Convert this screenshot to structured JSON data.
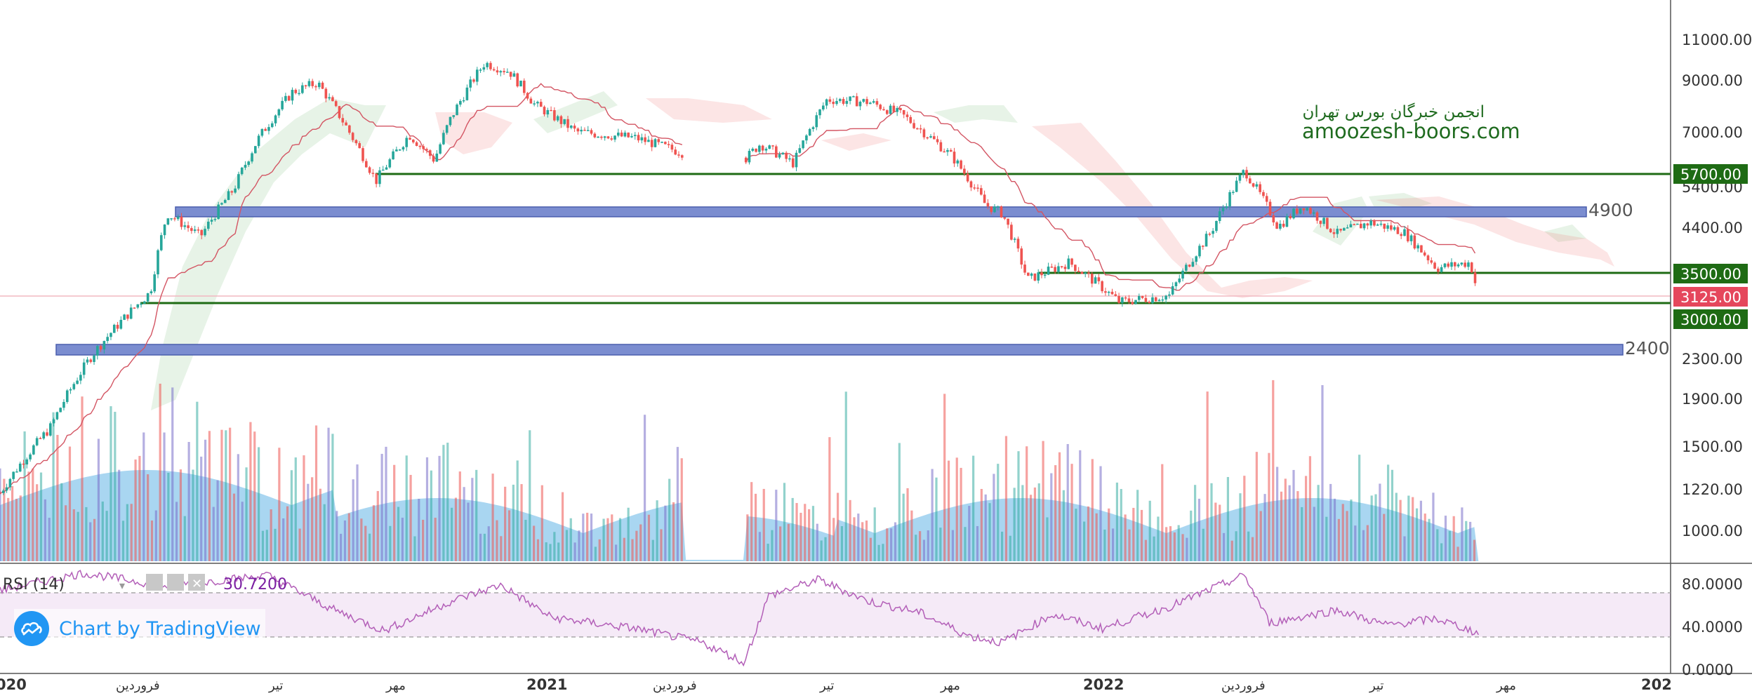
{
  "chart_data": {
    "type": "candlestick",
    "watermark": {
      "line1": "انجمن خبرگان بورس تهران",
      "line2": "amoozesh-boors.com"
    },
    "price_axis": {
      "scale": "log",
      "ticks": [
        "11000.00",
        "9000.00",
        "7000.00",
        "5400.00",
        "4400.00",
        "3500.00",
        "3000.00",
        "2300.00",
        "1900.00",
        "1500.00",
        "1220.00",
        "1000.00"
      ]
    },
    "time_axis": {
      "labels": [
        {
          "text": "020",
          "bold": true
        },
        {
          "text": "فروردین",
          "bold": false
        },
        {
          "text": "تیر",
          "bold": false
        },
        {
          "text": "مهر",
          "bold": false
        },
        {
          "text": "2021",
          "bold": true
        },
        {
          "text": "فروردین",
          "bold": false
        },
        {
          "text": "تیر",
          "bold": false
        },
        {
          "text": "مهر",
          "bold": false
        },
        {
          "text": "2022",
          "bold": true
        },
        {
          "text": "فروردین",
          "bold": false
        },
        {
          "text": "تیر",
          "bold": false
        },
        {
          "text": "مهر",
          "bold": false
        },
        {
          "text": "202",
          "bold": true
        }
      ]
    },
    "horizontal_levels": [
      {
        "price": 5700,
        "label": "5700.00",
        "color": "#1e6b14"
      },
      {
        "price": 3500,
        "label": "3500.00",
        "color": "#1e6b14"
      },
      {
        "price": 3000,
        "label": "3000.00",
        "color": "#1e6b14"
      }
    ],
    "current_price": {
      "price": 3125,
      "label": "3125.00",
      "color": "#e5475c"
    },
    "zones": [
      {
        "label": "4900",
        "low": 4800,
        "high": 5050,
        "color": "#6b7fc4"
      },
      {
        "label": "2400",
        "low": 2330,
        "high": 2480,
        "color": "#6b7fc4"
      }
    ],
    "price_path": [
      {
        "t": 0,
        "p": 1200
      },
      {
        "t": 0.03,
        "p": 1650
      },
      {
        "t": 0.055,
        "p": 2350
      },
      {
        "t": 0.09,
        "p": 3200
      },
      {
        "t": 0.1,
        "p": 4700
      },
      {
        "t": 0.12,
        "p": 4200
      },
      {
        "t": 0.14,
        "p": 5300
      },
      {
        "t": 0.155,
        "p": 6800
      },
      {
        "t": 0.175,
        "p": 8500
      },
      {
        "t": 0.19,
        "p": 8900
      },
      {
        "t": 0.21,
        "p": 6900
      },
      {
        "t": 0.225,
        "p": 5500
      },
      {
        "t": 0.245,
        "p": 6900
      },
      {
        "t": 0.26,
        "p": 6100
      },
      {
        "t": 0.27,
        "p": 7500
      },
      {
        "t": 0.29,
        "p": 9800
      },
      {
        "t": 0.305,
        "p": 9400
      },
      {
        "t": 0.32,
        "p": 8000
      },
      {
        "t": 0.345,
        "p": 7000
      },
      {
        "t": 0.38,
        "p": 6800
      },
      {
        "t": 0.41,
        "p": 6300
      },
      {
        "t": 0.44,
        "p": 5800
      },
      {
        "t": 0.455,
        "p": 6600
      },
      {
        "t": 0.475,
        "p": 6000
      },
      {
        "t": 0.495,
        "p": 8200
      },
      {
        "t": 0.52,
        "p": 8100
      },
      {
        "t": 0.54,
        "p": 7600
      },
      {
        "t": 0.57,
        "p": 6200
      },
      {
        "t": 0.59,
        "p": 4900
      },
      {
        "t": 0.6,
        "p": 4700
      },
      {
        "t": 0.615,
        "p": 3400
      },
      {
        "t": 0.64,
        "p": 3700
      },
      {
        "t": 0.67,
        "p": 3050
      },
      {
        "t": 0.7,
        "p": 3150
      },
      {
        "t": 0.725,
        "p": 4300
      },
      {
        "t": 0.745,
        "p": 5800
      },
      {
        "t": 0.765,
        "p": 4400
      },
      {
        "t": 0.78,
        "p": 4900
      },
      {
        "t": 0.8,
        "p": 4250
      },
      {
        "t": 0.82,
        "p": 4500
      },
      {
        "t": 0.84,
        "p": 4300
      },
      {
        "t": 0.86,
        "p": 3600
      },
      {
        "t": 0.88,
        "p": 3700
      },
      {
        "t": 0.885,
        "p": 3125
      }
    ],
    "rsi": {
      "title": "RSI (14)",
      "value": "30.7200",
      "upper": 70,
      "lower": 30,
      "ticks": [
        "80.0000",
        "40.0000",
        "0.0000"
      ],
      "path": [
        {
          "t": 0,
          "v": 70
        },
        {
          "t": 0.05,
          "v": 86
        },
        {
          "t": 0.1,
          "v": 74
        },
        {
          "t": 0.16,
          "v": 84
        },
        {
          "t": 0.2,
          "v": 52
        },
        {
          "t": 0.23,
          "v": 33
        },
        {
          "t": 0.27,
          "v": 60
        },
        {
          "t": 0.3,
          "v": 75
        },
        {
          "t": 0.33,
          "v": 45
        },
        {
          "t": 0.38,
          "v": 35
        },
        {
          "t": 0.42,
          "v": 22
        },
        {
          "t": 0.44,
          "v": 8
        },
        {
          "t": 0.445,
          "v": 2
        },
        {
          "t": 0.46,
          "v": 65
        },
        {
          "t": 0.49,
          "v": 80
        },
        {
          "t": 0.52,
          "v": 60
        },
        {
          "t": 0.55,
          "v": 50
        },
        {
          "t": 0.58,
          "v": 28
        },
        {
          "t": 0.6,
          "v": 22
        },
        {
          "t": 0.63,
          "v": 48
        },
        {
          "t": 0.66,
          "v": 35
        },
        {
          "t": 0.7,
          "v": 55
        },
        {
          "t": 0.745,
          "v": 84
        },
        {
          "t": 0.76,
          "v": 40
        },
        {
          "t": 0.8,
          "v": 52
        },
        {
          "t": 0.83,
          "v": 38
        },
        {
          "t": 0.86,
          "v": 44
        },
        {
          "t": 0.885,
          "v": 30.72
        }
      ]
    },
    "volume": {
      "gap_start": 0.41,
      "gap_end": 0.445
    },
    "colors": {
      "up": "#26a69a",
      "down": "#ef5350",
      "base_line": "#d35563",
      "rsi_line": "#b35fb8"
    }
  },
  "branding": {
    "tradingview": "Chart by TradingView"
  }
}
